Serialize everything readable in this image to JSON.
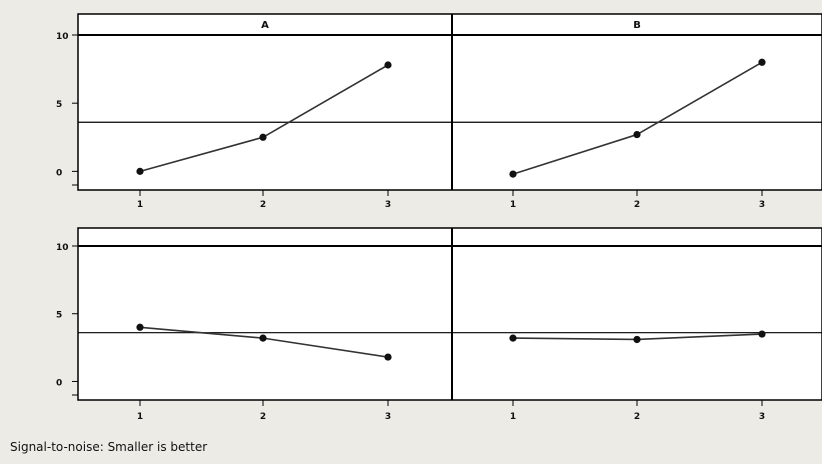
{
  "footnote": "Signal-to-noise: Smaller is better",
  "colors": {
    "page_background": "#ecebe6",
    "plot_background": "#ffffff",
    "line": "#333333",
    "point": "#111111"
  },
  "chart_data": {
    "type": "line",
    "layout": "2x2 panel grid, shared y-axis per row",
    "title": "",
    "ylim": [
      -1,
      10
    ],
    "y_ticks": [
      "10",
      "5",
      "0"
    ],
    "grid": false,
    "reference_line": 3.6,
    "categories": [
      "1",
      "2",
      "3"
    ],
    "panels": [
      {
        "label": "A",
        "values": [
          0,
          2.5,
          7.8
        ]
      },
      {
        "label": "B",
        "values": [
          -0.2,
          2.7,
          8.0
        ]
      },
      {
        "label": "",
        "values": [
          4.0,
          3.2,
          1.8
        ]
      },
      {
        "label": "",
        "values": [
          3.2,
          3.1,
          3.5
        ]
      }
    ]
  }
}
